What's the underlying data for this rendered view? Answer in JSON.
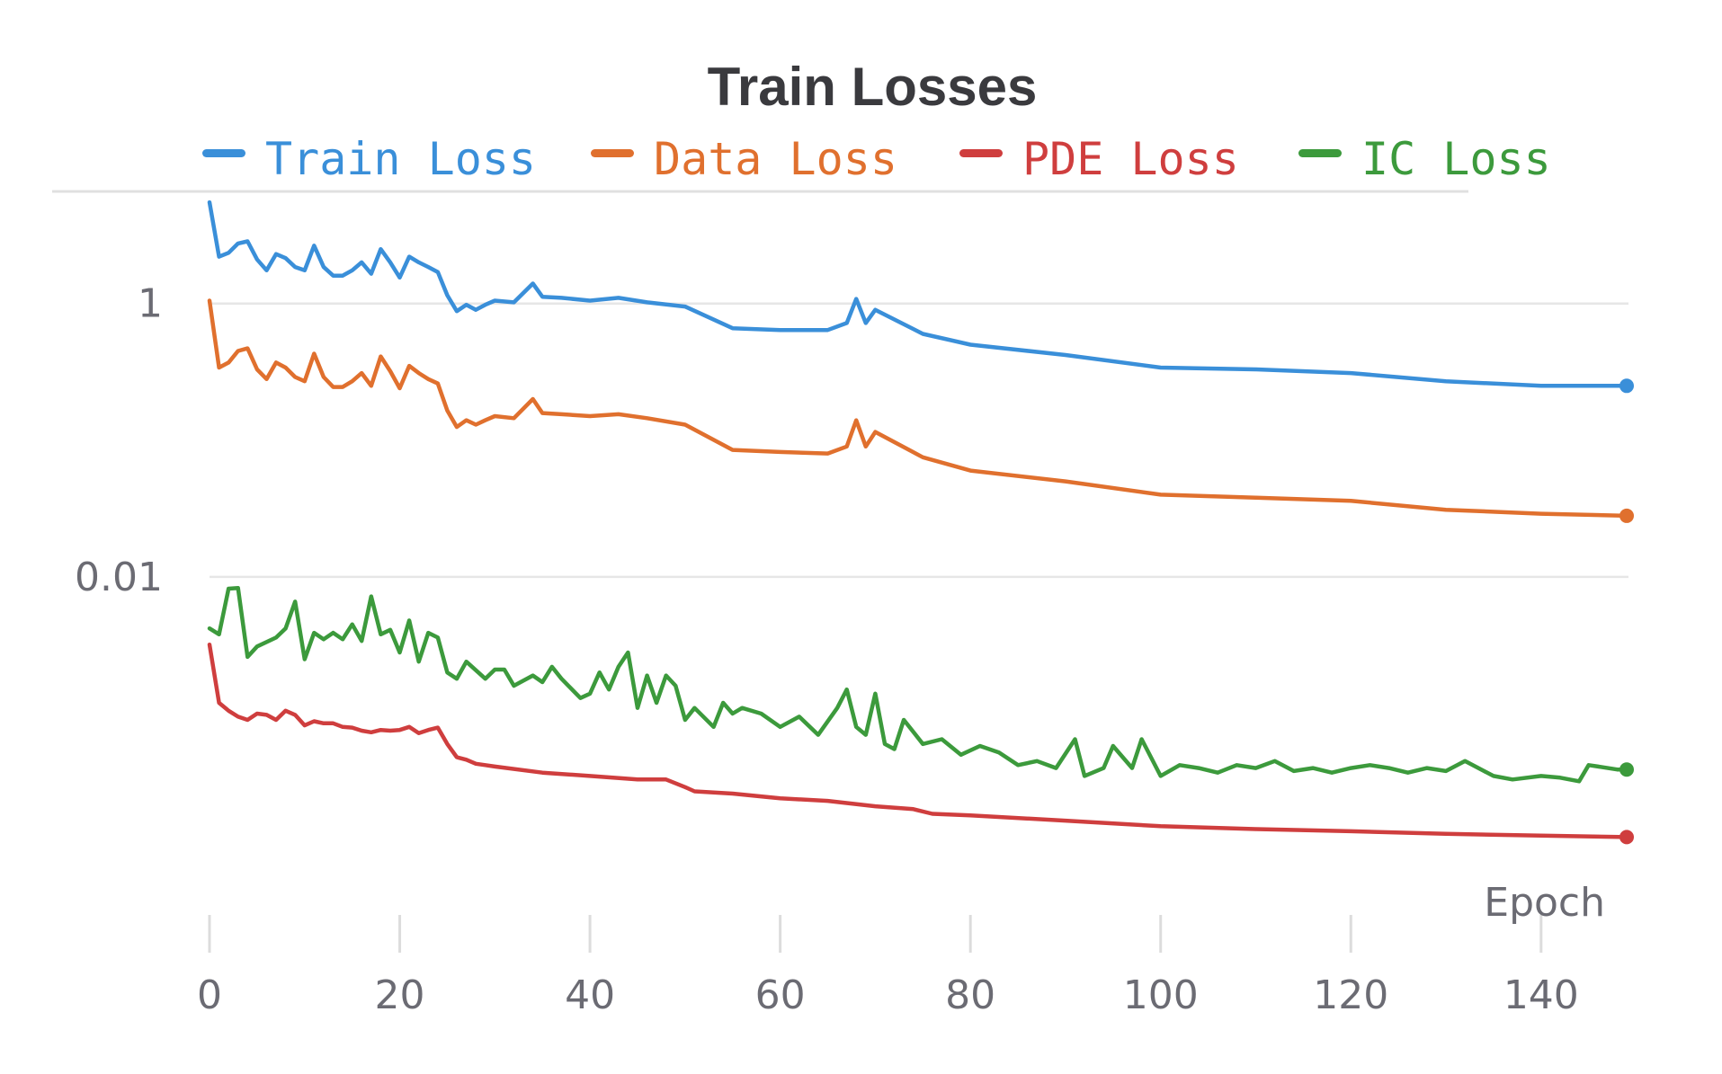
{
  "chart_data": {
    "type": "line",
    "title": "Train Losses",
    "xlabel": "Epoch",
    "ylabel": "",
    "yscale": "log",
    "xlim": [
      0,
      149
    ],
    "ylim_log10": [
      -4.65,
      0.82
    ],
    "xticks": [
      {
        "value": 0,
        "label": "0"
      },
      {
        "value": 20,
        "label": "20"
      },
      {
        "value": 40,
        "label": "40"
      },
      {
        "value": 60,
        "label": "60"
      },
      {
        "value": 80,
        "label": "80"
      },
      {
        "value": 100,
        "label": "100"
      },
      {
        "value": 120,
        "label": "120"
      },
      {
        "value": 140,
        "label": "140"
      }
    ],
    "yticks": [
      {
        "value": 1,
        "label": "1"
      },
      {
        "value": 0.01,
        "label": "0.01"
      }
    ],
    "legend_position": "top",
    "series": [
      {
        "name": "Train Loss",
        "color": "#3a8fd9",
        "x": [
          0,
          1,
          2,
          3,
          4,
          5,
          6,
          7,
          8,
          9,
          10,
          11,
          12,
          13,
          14,
          15,
          16,
          17,
          18,
          19,
          20,
          21,
          22,
          23,
          24,
          25,
          26,
          27,
          28,
          29,
          30,
          32,
          34,
          35,
          37,
          40,
          43,
          46,
          50,
          55,
          60,
          65,
          67,
          68,
          69,
          70,
          75,
          80,
          90,
          100,
          110,
          120,
          130,
          140,
          149
        ],
        "values": [
          5.5,
          2.2,
          2.35,
          2.75,
          2.85,
          2.1,
          1.75,
          2.3,
          2.15,
          1.85,
          1.75,
          2.65,
          1.85,
          1.6,
          1.6,
          1.75,
          2.0,
          1.65,
          2.5,
          2.0,
          1.55,
          2.2,
          2.0,
          1.85,
          1.7,
          1.15,
          0.88,
          0.98,
          0.9,
          0.98,
          1.05,
          1.02,
          1.4,
          1.12,
          1.1,
          1.05,
          1.1,
          1.02,
          0.95,
          0.66,
          0.64,
          0.64,
          0.72,
          1.08,
          0.72,
          0.9,
          0.6,
          0.5,
          0.42,
          0.34,
          0.33,
          0.31,
          0.27,
          0.25,
          0.25
        ]
      },
      {
        "name": "Data Loss",
        "color": "#e0702e",
        "x": [
          0,
          1,
          2,
          3,
          4,
          5,
          6,
          7,
          8,
          9,
          10,
          11,
          12,
          13,
          14,
          15,
          16,
          17,
          18,
          19,
          20,
          21,
          22,
          23,
          24,
          25,
          26,
          27,
          28,
          29,
          30,
          32,
          34,
          35,
          37,
          40,
          43,
          46,
          50,
          55,
          60,
          65,
          67,
          68,
          69,
          70,
          75,
          80,
          90,
          100,
          110,
          120,
          130,
          140,
          149
        ],
        "values": [
          1.05,
          0.34,
          0.37,
          0.45,
          0.47,
          0.33,
          0.28,
          0.37,
          0.34,
          0.29,
          0.27,
          0.43,
          0.29,
          0.245,
          0.245,
          0.27,
          0.31,
          0.25,
          0.41,
          0.32,
          0.24,
          0.35,
          0.31,
          0.28,
          0.26,
          0.165,
          0.125,
          0.14,
          0.13,
          0.14,
          0.15,
          0.145,
          0.2,
          0.158,
          0.155,
          0.15,
          0.155,
          0.145,
          0.13,
          0.085,
          0.082,
          0.08,
          0.09,
          0.14,
          0.09,
          0.115,
          0.075,
          0.06,
          0.05,
          0.04,
          0.038,
          0.036,
          0.031,
          0.029,
          0.028
        ]
      },
      {
        "name": "PDE Loss",
        "color": "#cf3e3e",
        "x": [
          0,
          1,
          2,
          3,
          4,
          5,
          6,
          7,
          8,
          9,
          10,
          11,
          12,
          13,
          14,
          15,
          16,
          17,
          18,
          19,
          20,
          21,
          22,
          23,
          24,
          25,
          26,
          27,
          28,
          29,
          30,
          35,
          40,
          45,
          48,
          50,
          51,
          55,
          60,
          65,
          70,
          74,
          76,
          80,
          90,
          100,
          110,
          120,
          130,
          140,
          149
        ],
        "values": [
          0.0032,
          0.0012,
          0.00105,
          0.00095,
          0.0009,
          0.001,
          0.00098,
          0.0009,
          0.00105,
          0.00098,
          0.00082,
          0.00088,
          0.00085,
          0.00085,
          0.0008,
          0.00079,
          0.00075,
          0.00073,
          0.00076,
          0.00075,
          0.00076,
          0.0008,
          0.00072,
          0.00076,
          0.00079,
          0.0006,
          0.00048,
          0.00046,
          0.00043,
          0.00042,
          0.00041,
          0.00037,
          0.00035,
          0.00033,
          0.00033,
          0.00029,
          0.00027,
          0.00026,
          0.00024,
          0.00023,
          0.00021,
          0.0002,
          0.000185,
          0.00018,
          0.000165,
          0.00015,
          0.000143,
          0.000138,
          0.000132,
          0.000128,
          0.000125
        ]
      },
      {
        "name": "IC Loss",
        "color": "#3c9a3c",
        "x": [
          0,
          1,
          2,
          3,
          4,
          5,
          7,
          8,
          9,
          10,
          11,
          12,
          13,
          14,
          15,
          16,
          17,
          18,
          19,
          20,
          21,
          22,
          23,
          24,
          25,
          26,
          27,
          29,
          30,
          31,
          32,
          34,
          35,
          36,
          37,
          39,
          40,
          41,
          42,
          43,
          44,
          45,
          46,
          47,
          48,
          49,
          50,
          51,
          53,
          54,
          55,
          56,
          58,
          60,
          62,
          64,
          66,
          67,
          68,
          69,
          70,
          71,
          72,
          73,
          75,
          77,
          79,
          81,
          83,
          85,
          87,
          89,
          91,
          92,
          94,
          95,
          97,
          98,
          100,
          102,
          104,
          106,
          108,
          110,
          112,
          114,
          116,
          118,
          120,
          122,
          124,
          126,
          128,
          130,
          132,
          134,
          135,
          137,
          140,
          142,
          144,
          145,
          146,
          148,
          149
        ],
        "values": [
          0.0042,
          0.0038,
          0.0082,
          0.0083,
          0.0026,
          0.0031,
          0.0036,
          0.0042,
          0.0066,
          0.0025,
          0.0039,
          0.0035,
          0.0039,
          0.0035,
          0.0045,
          0.0034,
          0.0072,
          0.0038,
          0.0041,
          0.0028,
          0.0048,
          0.0024,
          0.0039,
          0.0036,
          0.002,
          0.0018,
          0.0024,
          0.0018,
          0.0021,
          0.0021,
          0.0016,
          0.0019,
          0.0017,
          0.0022,
          0.0018,
          0.0013,
          0.0014,
          0.002,
          0.0015,
          0.0022,
          0.0028,
          0.0011,
          0.0019,
          0.0012,
          0.0019,
          0.0016,
          0.0009,
          0.0011,
          0.0008,
          0.0012,
          0.001,
          0.0011,
          0.001,
          0.0008,
          0.00095,
          0.0007,
          0.0011,
          0.0015,
          0.0008,
          0.0007,
          0.0014,
          0.0006,
          0.00055,
          0.0009,
          0.0006,
          0.00065,
          0.0005,
          0.00058,
          0.00052,
          0.00042,
          0.00045,
          0.0004,
          0.00065,
          0.00035,
          0.0004,
          0.00058,
          0.0004,
          0.00065,
          0.00035,
          0.00042,
          0.0004,
          0.00037,
          0.00042,
          0.0004,
          0.00045,
          0.00038,
          0.0004,
          0.00037,
          0.0004,
          0.00042,
          0.0004,
          0.00037,
          0.0004,
          0.00038,
          0.00045,
          0.00038,
          0.00035,
          0.00033,
          0.00035,
          0.00034,
          0.00032,
          0.00042,
          0.00041,
          0.00039,
          0.00039
        ]
      }
    ]
  }
}
